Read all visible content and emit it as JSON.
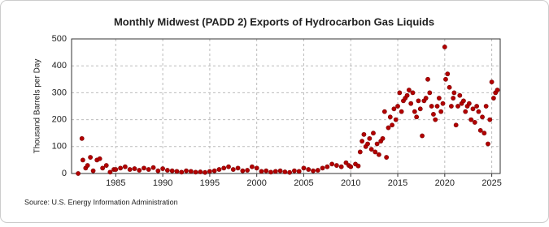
{
  "chart_data": {
    "type": "scatter",
    "title": "Monthly Midwest (PADD 2) Exports of Hydrocarbon Gas Liquids",
    "y_label": "Thousand Barrels per Day",
    "source": "Source: U.S. Energy Information Administration",
    "color": "#b40000",
    "grid": true,
    "xlim": [
      1980.3,
      2025.9
    ],
    "ylim": [
      0,
      500
    ],
    "xticks": [
      1985,
      1990,
      1995,
      2000,
      2005,
      2010,
      2015,
      2020,
      2025
    ],
    "yticks": [
      0,
      100,
      200,
      300,
      400,
      500
    ],
    "x": [
      1981,
      1981.4,
      1981.5,
      1981.8,
      1982,
      1982.3,
      1982.6,
      1983,
      1983.3,
      1983.6,
      1984,
      1984.4,
      1984.8,
      1985,
      1985.5,
      1986,
      1986.5,
      1987,
      1987.5,
      1988,
      1988.5,
      1989,
      1989.5,
      1990,
      1990.5,
      1991,
      1991.5,
      1992,
      1992.5,
      1993,
      1993.5,
      1994,
      1994.5,
      1995,
      1995.5,
      1996,
      1996.5,
      1997,
      1997.5,
      1998,
      1998.5,
      1999,
      1999.5,
      2000,
      2000.5,
      2001,
      2001.5,
      2002,
      2002.5,
      2003,
      2003.5,
      2004,
      2004.5,
      2005,
      2005.5,
      2006,
      2006.5,
      2007,
      2007.5,
      2008,
      2008.5,
      2009,
      2009.5,
      2009.8,
      2010,
      2010.5,
      2010.8,
      2011,
      2011.2,
      2011.4,
      2011.6,
      2011.8,
      2012,
      2012.2,
      2012.4,
      2012.6,
      2012.8,
      2013,
      2013.2,
      2013.4,
      2013.6,
      2013.8,
      2014,
      2014.2,
      2014.4,
      2014.6,
      2014.8,
      2015,
      2015.2,
      2015.4,
      2015.6,
      2015.8,
      2016,
      2016.2,
      2016.4,
      2016.6,
      2016.8,
      2017,
      2017.2,
      2017.4,
      2017.6,
      2017.8,
      2018,
      2018.2,
      2018.4,
      2018.6,
      2018.8,
      2019,
      2019.2,
      2019.4,
      2019.6,
      2019.8,
      2020,
      2020.1,
      2020.3,
      2020.5,
      2020.7,
      2020.9,
      2021,
      2021.2,
      2021.4,
      2021.6,
      2021.8,
      2022,
      2022.2,
      2022.4,
      2022.6,
      2022.8,
      2023,
      2023.2,
      2023.4,
      2023.6,
      2023.8,
      2024,
      2024.2,
      2024.4,
      2024.6,
      2024.8,
      2025,
      2025.2,
      2025.4,
      2025.6
    ],
    "values": [
      0,
      130,
      50,
      20,
      30,
      60,
      10,
      50,
      55,
      20,
      30,
      5,
      15,
      15,
      20,
      25,
      15,
      18,
      12,
      20,
      15,
      22,
      10,
      18,
      12,
      10,
      8,
      5,
      10,
      8,
      5,
      6,
      4,
      8,
      10,
      15,
      20,
      25,
      15,
      20,
      10,
      12,
      25,
      20,
      8,
      10,
      5,
      8,
      10,
      6,
      4,
      10,
      8,
      20,
      15,
      10,
      12,
      20,
      25,
      35,
      30,
      25,
      40,
      30,
      25,
      35,
      28,
      80,
      120,
      145,
      100,
      110,
      130,
      90,
      150,
      80,
      110,
      70,
      120,
      130,
      230,
      60,
      170,
      210,
      180,
      240,
      200,
      250,
      300,
      230,
      270,
      280,
      290,
      310,
      260,
      300,
      230,
      210,
      270,
      240,
      140,
      270,
      280,
      350,
      300,
      250,
      220,
      200,
      250,
      280,
      230,
      260,
      470,
      350,
      370,
      320,
      250,
      280,
      300,
      180,
      250,
      290,
      260,
      270,
      230,
      250,
      260,
      200,
      240,
      190,
      250,
      230,
      160,
      210,
      150,
      250,
      110,
      200,
      340,
      280,
      300,
      310
    ]
  }
}
